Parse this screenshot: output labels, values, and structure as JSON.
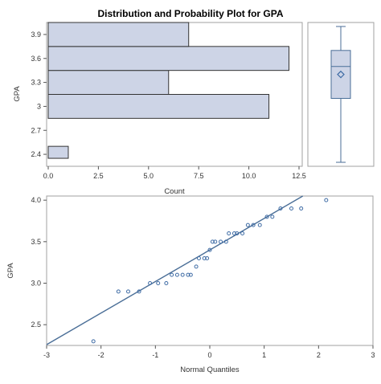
{
  "figure": {
    "title": "Distribution and Probability Plot for GPA"
  },
  "colors": {
    "bar_fill": "#cdd4e6",
    "bar_stroke": "#333333",
    "marker": "#3f6ca5",
    "line": "#4a6e97",
    "frame": "#a0a0a0"
  },
  "chart_data": [
    {
      "type": "bar",
      "orientation": "horizontal",
      "xlabel": "Count",
      "ylabel": "GPA",
      "bins": [
        {
          "lo": 2.35,
          "hi": 2.5,
          "count": 1
        },
        {
          "lo": 2.5,
          "hi": 2.85,
          "count": 0
        },
        {
          "lo": 2.85,
          "hi": 3.15,
          "count": 11
        },
        {
          "lo": 3.15,
          "hi": 3.45,
          "count": 6
        },
        {
          "lo": 3.45,
          "hi": 3.75,
          "count": 12
        },
        {
          "lo": 3.75,
          "hi": 4.05,
          "count": 7
        }
      ],
      "xlim": [
        0,
        12.5
      ],
      "ylim": [
        2.25,
        4.05
      ],
      "xticks": [
        "0.0",
        "2.5",
        "5.0",
        "7.5",
        "10.0",
        "12.5"
      ],
      "xtick_values": [
        0,
        2.5,
        5,
        7.5,
        10,
        12.5
      ],
      "yticks": [
        "2.4",
        "2.7",
        "3",
        "3.3",
        "3.6",
        "3.9"
      ],
      "ytick_values": [
        2.4,
        2.7,
        3.0,
        3.3,
        3.6,
        3.9
      ]
    },
    {
      "type": "box",
      "min": 2.3,
      "q1": 3.1,
      "median": 3.5,
      "q3": 3.7,
      "max": 4.0,
      "mean": 3.4
    },
    {
      "type": "scatter",
      "xlabel": "Normal Quantiles",
      "ylabel": "GPA",
      "xlim": [
        -3,
        3
      ],
      "ylim": [
        2.25,
        4.05
      ],
      "xticks": [
        "-3",
        "-2",
        "-1",
        "0",
        "1",
        "2",
        "3"
      ],
      "xtick_values": [
        -3,
        -2,
        -1,
        0,
        1,
        2,
        3
      ],
      "yticks": [
        "2.5",
        "3.0",
        "3.5",
        "4.0"
      ],
      "ytick_values": [
        2.5,
        3.0,
        3.5,
        4.0
      ],
      "x": [
        -2.14,
        -1.68,
        -1.5,
        -1.3,
        -1.1,
        -0.95,
        -0.8,
        -0.7,
        -0.6,
        -0.5,
        -0.4,
        -0.35,
        -0.25,
        -0.2,
        -0.1,
        -0.05,
        0.0,
        0.05,
        0.1,
        0.2,
        0.3,
        0.35,
        0.45,
        0.5,
        0.6,
        0.7,
        0.8,
        0.92,
        1.05,
        1.15,
        1.3,
        1.5,
        1.68,
        2.14
      ],
      "y": [
        2.3,
        2.9,
        2.9,
        2.9,
        3.0,
        3.0,
        3.0,
        3.1,
        3.1,
        3.1,
        3.1,
        3.1,
        3.2,
        3.3,
        3.3,
        3.3,
        3.4,
        3.5,
        3.5,
        3.5,
        3.5,
        3.6,
        3.6,
        3.6,
        3.6,
        3.7,
        3.7,
        3.7,
        3.8,
        3.8,
        3.9,
        3.9,
        3.9,
        4.0
      ],
      "reference_line": {
        "intercept": 3.4,
        "slope": 0.38
      }
    }
  ]
}
